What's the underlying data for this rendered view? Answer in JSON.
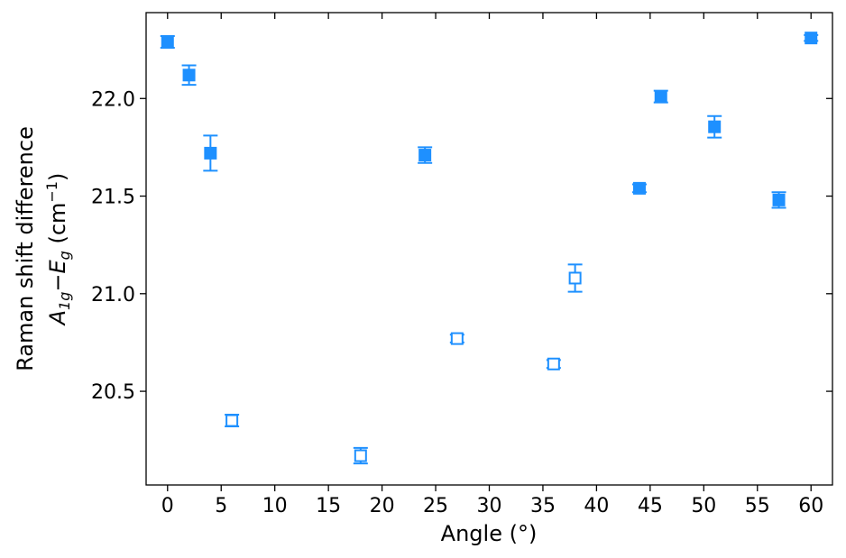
{
  "chart_data": {
    "type": "scatter",
    "xlabel": "Angle (°)",
    "ylabel": {
      "line1": "Raman shift difference",
      "a": "A",
      "a_sub": "1g",
      "minus": "−",
      "e": "E",
      "e_sub": "g",
      "unit_open": " (cm",
      "unit_sup": "−1",
      "unit_close": ")"
    },
    "xlim": [
      -2,
      62
    ],
    "ylim": [
      20.02,
      22.44
    ],
    "xticks": [
      0,
      5,
      10,
      15,
      20,
      25,
      30,
      35,
      40,
      45,
      50,
      55,
      60
    ],
    "yticks": [
      {
        "value": 20.5,
        "label": "20.5"
      },
      {
        "value": 21,
        "label": "21.0"
      },
      {
        "value": 21.5,
        "label": "21.5"
      },
      {
        "value": 22,
        "label": "22.0"
      }
    ],
    "series": [
      {
        "color": "#1e90ff",
        "filled": true,
        "x": [
          0,
          2,
          4,
          24,
          44,
          46,
          51,
          57,
          60
        ],
        "values": [
          22.29,
          22.12,
          21.72,
          21.71,
          21.54,
          22.01,
          21.855,
          21.48,
          22.31
        ],
        "errors": [
          0.03,
          0.05,
          0.09,
          0.04,
          0.02,
          0.03,
          0.055,
          0.04,
          0.015
        ]
      },
      {
        "color": "#1e90ff",
        "filled": false,
        "x": [
          6,
          18,
          27,
          36,
          38
        ],
        "values": [
          20.35,
          20.17,
          20.77,
          20.64,
          21.08
        ],
        "errors": [
          0.03,
          0.04,
          0.02,
          0.02,
          0.07
        ]
      }
    ]
  }
}
